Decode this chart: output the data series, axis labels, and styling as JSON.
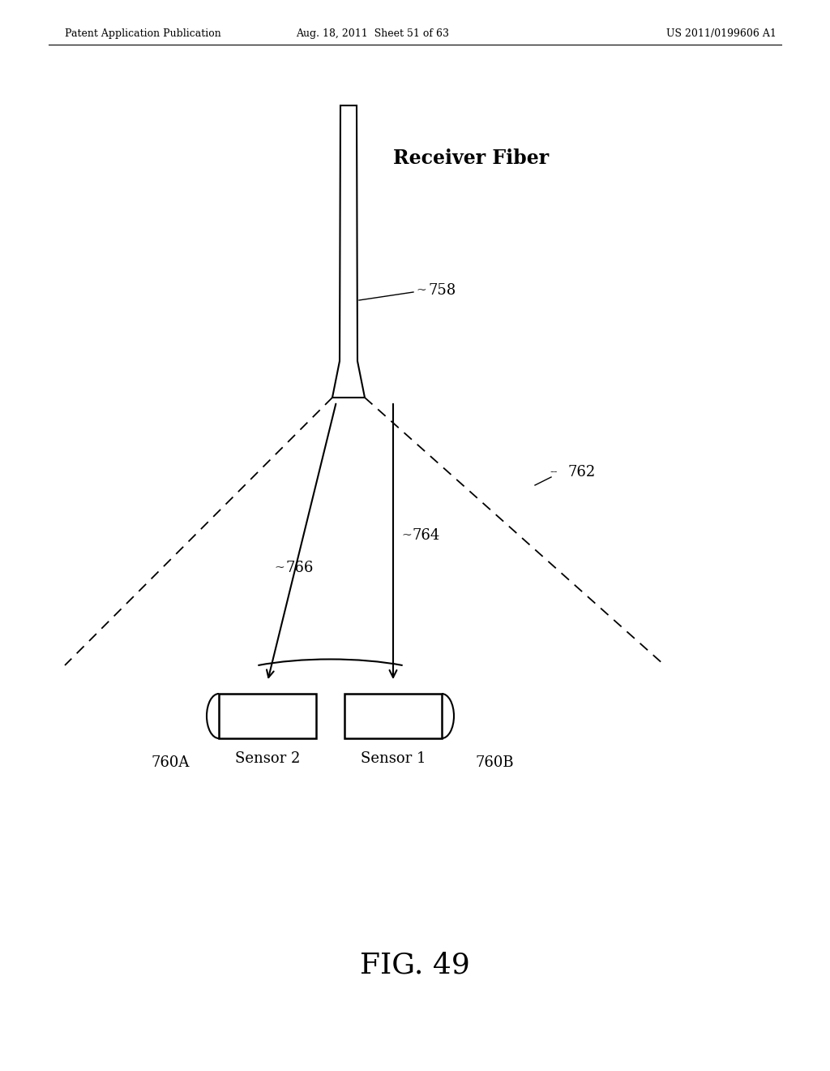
{
  "bg_color": "#ffffff",
  "header_left": "Patent Application Publication",
  "header_mid": "Aug. 18, 2011  Sheet 51 of 63",
  "header_right": "US 2011/0199606 A1",
  "fig_label": "FIG. 49",
  "receiver_fiber_label": "Receiver Fiber",
  "label_758": "758",
  "label_762": "762",
  "label_764": "764",
  "label_766": "766",
  "label_760A": "760A",
  "label_760B": "760B",
  "sensor1_label": "Sensor 1",
  "sensor2_label": "Sensor 2"
}
